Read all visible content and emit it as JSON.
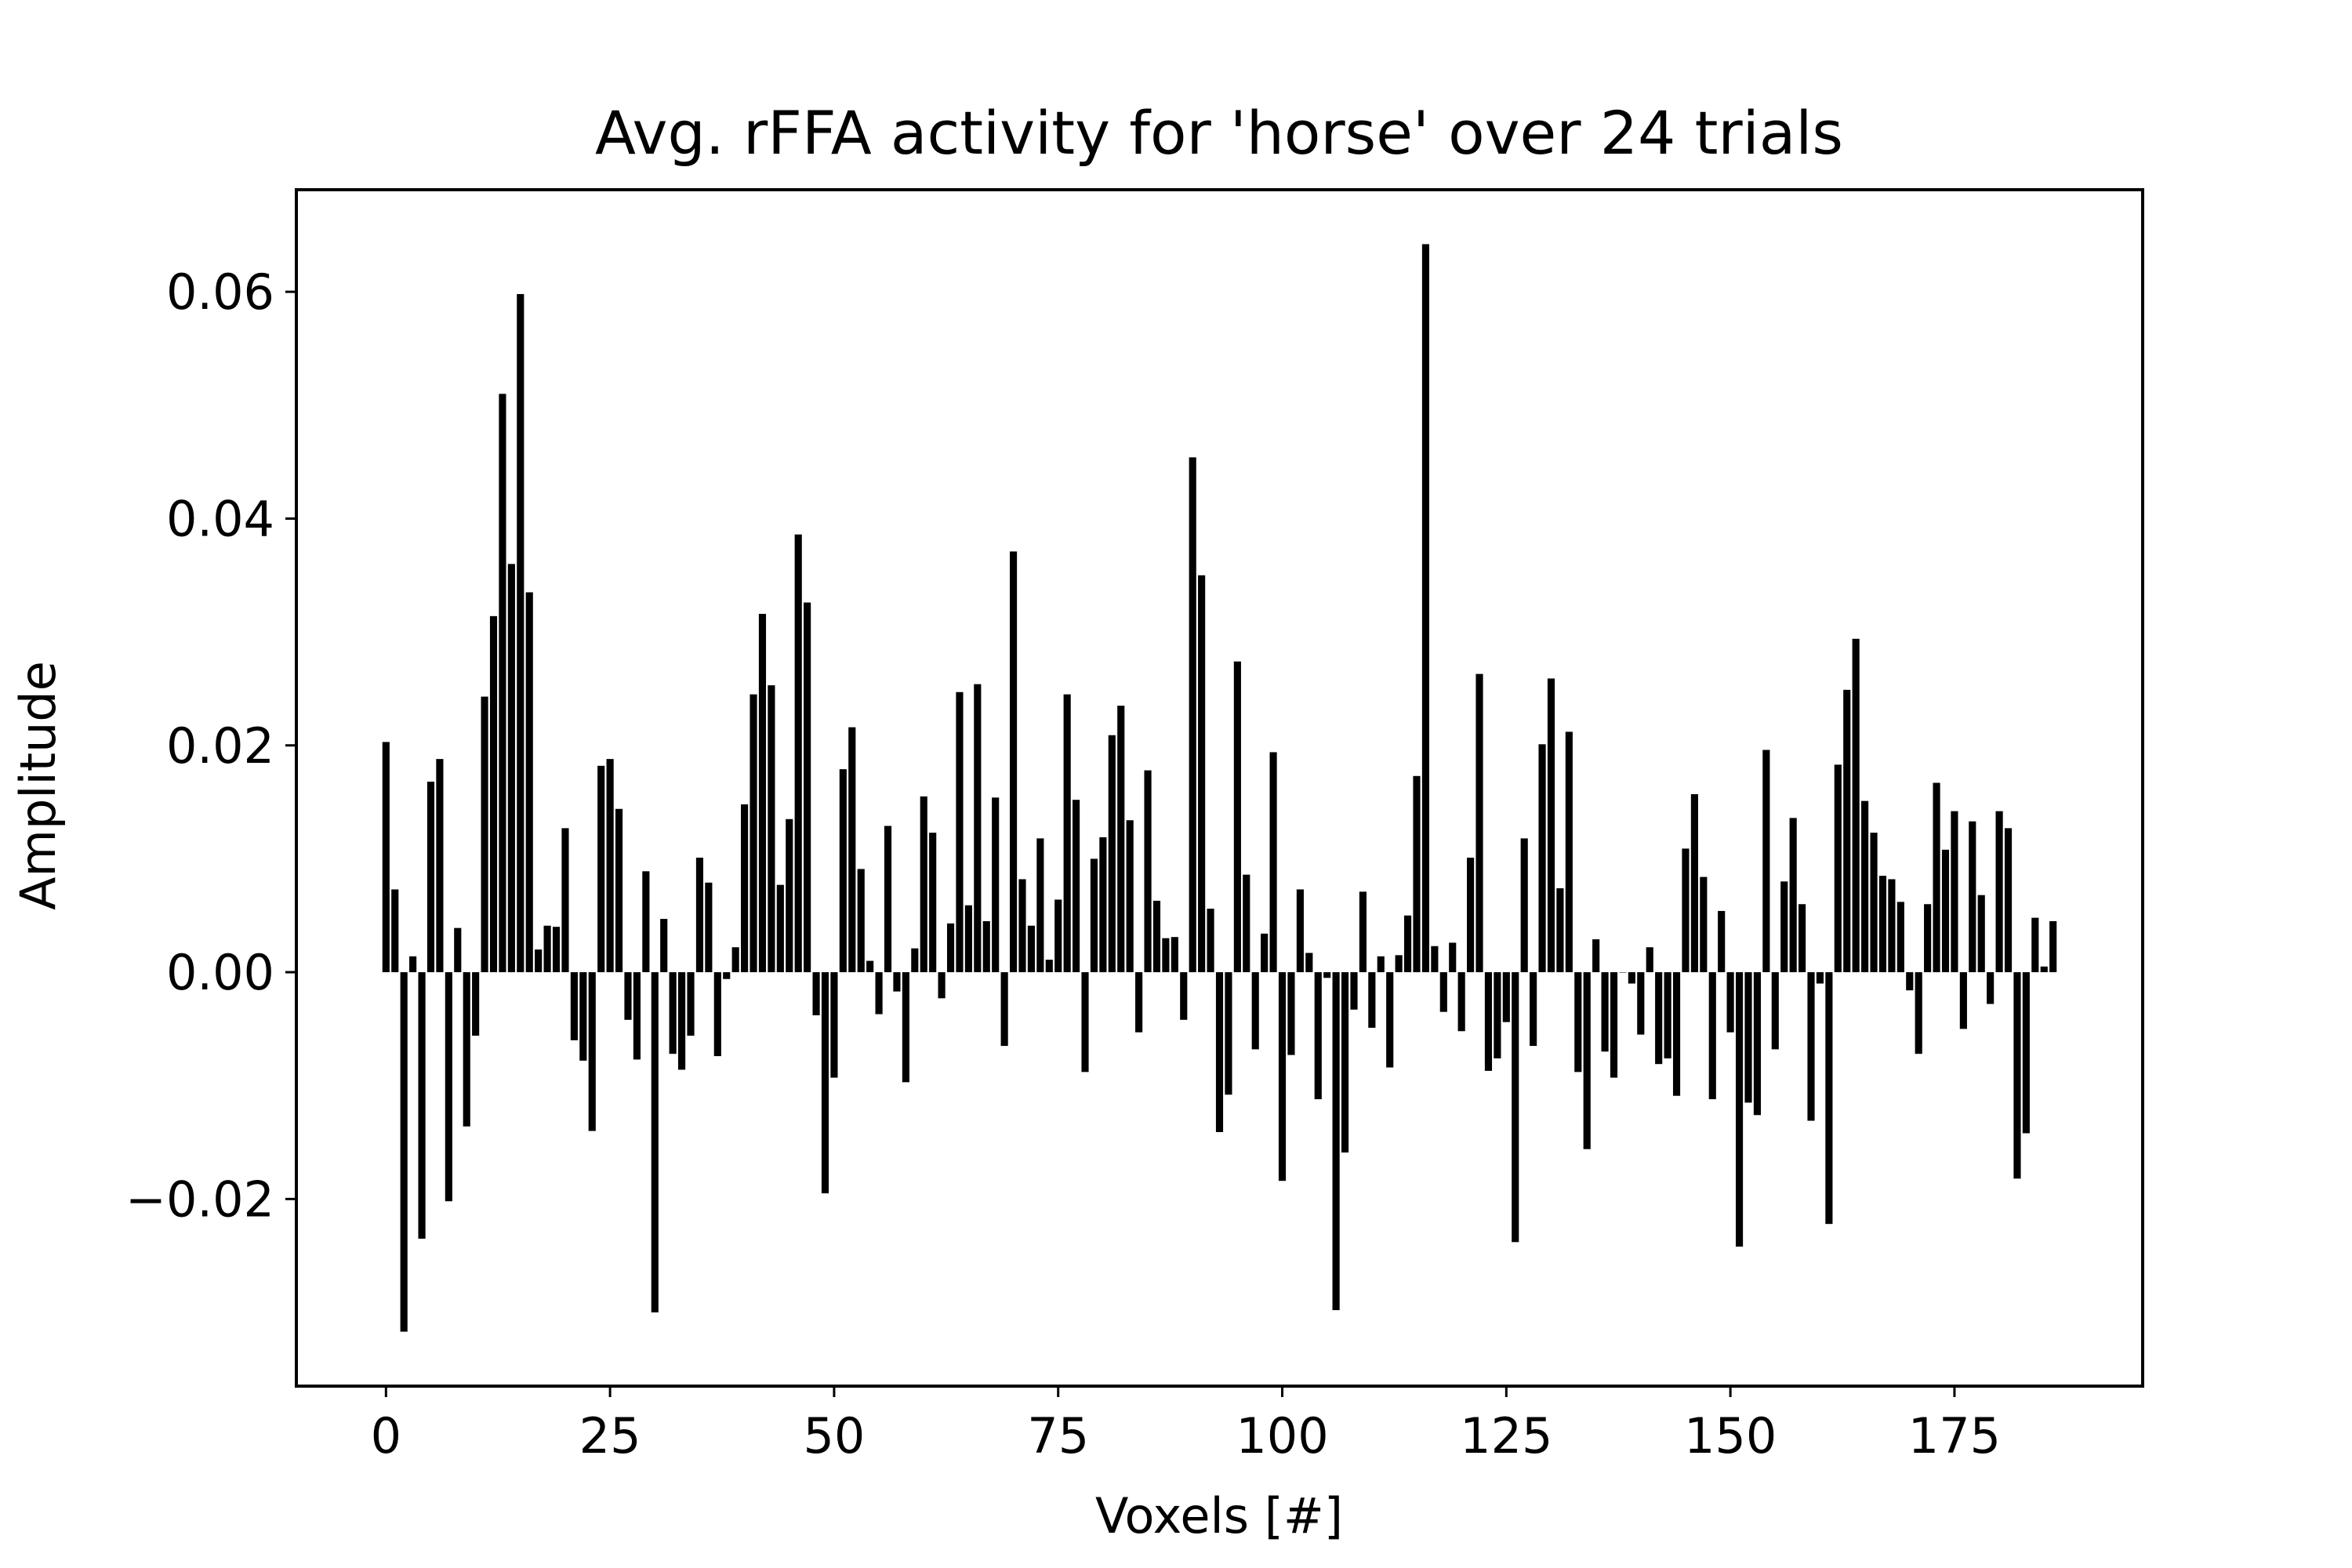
{
  "chart_data": {
    "type": "bar",
    "title": "Avg. rFFA activity for 'horse' over 24 trials",
    "xlabel": "Voxels [#]",
    "ylabel": "Amplitude",
    "xlim": [
      -10,
      196
    ],
    "ylim": [
      -0.0365,
      0.069
    ],
    "xticks": [
      0,
      25,
      50,
      75,
      100,
      125,
      150,
      175
    ],
    "xtick_labels": [
      "0",
      "25",
      "50",
      "75",
      "100",
      "125",
      "150",
      "175"
    ],
    "yticks": [
      -0.02,
      0.0,
      0.02,
      0.04,
      0.06
    ],
    "ytick_labels": [
      "−0.02",
      "0.00",
      "0.02",
      "0.04",
      "0.06"
    ],
    "grid": false,
    "bar_color": "#000000",
    "x": [
      0,
      1,
      2,
      3,
      4,
      5,
      6,
      7,
      8,
      9,
      10,
      11,
      12,
      13,
      14,
      15,
      16,
      17,
      18,
      19,
      20,
      21,
      22,
      23,
      24,
      25,
      26,
      27,
      28,
      29,
      30,
      31,
      32,
      33,
      34,
      35,
      36,
      37,
      38,
      39,
      40,
      41,
      42,
      43,
      44,
      45,
      46,
      47,
      48,
      49,
      50,
      51,
      52,
      53,
      54,
      55,
      56,
      57,
      58,
      59,
      60,
      61,
      62,
      63,
      64,
      65,
      66,
      67,
      68,
      69,
      70,
      71,
      72,
      73,
      74,
      75,
      76,
      77,
      78,
      79,
      80,
      81,
      82,
      83,
      84,
      85,
      86,
      87,
      88,
      89,
      90,
      91,
      92,
      93,
      94,
      95,
      96,
      97,
      98,
      99,
      100,
      101,
      102,
      103,
      104,
      105,
      106,
      107,
      108,
      109,
      110,
      111,
      112,
      113,
      114,
      115,
      116,
      117,
      118,
      119,
      120,
      121,
      122,
      123,
      124,
      125,
      126,
      127,
      128,
      129,
      130,
      131,
      132,
      133,
      134,
      135,
      136,
      137,
      138,
      139,
      140,
      141,
      142,
      143,
      144,
      145,
      146,
      147,
      148,
      149,
      150,
      151,
      152,
      153,
      154,
      155,
      156,
      157,
      158,
      159,
      160,
      161,
      162,
      163,
      164,
      165,
      166,
      167,
      168,
      169,
      170,
      171,
      172,
      173,
      174,
      175,
      176,
      177,
      178,
      179,
      180,
      181,
      182,
      183,
      184,
      185,
      186
    ],
    "values": [
      0.0203,
      0.0073,
      -0.0317,
      0.0014,
      -0.0235,
      0.0168,
      0.0188,
      -0.0202,
      0.0039,
      -0.0136,
      -0.0056,
      0.0243,
      0.0314,
      0.051,
      0.036,
      0.0598,
      0.0335,
      0.002,
      0.0041,
      0.004,
      0.0127,
      -0.006,
      -0.0078,
      -0.014,
      0.0182,
      0.0188,
      0.0144,
      -0.0042,
      -0.0077,
      0.0089,
      -0.03,
      0.0047,
      -0.0072,
      -0.0086,
      -0.0056,
      0.0101,
      0.0079,
      -0.0074,
      -0.0006,
      0.0022,
      0.0148,
      0.0245,
      0.0316,
      0.0253,
      0.0077,
      0.0135,
      0.0386,
      0.0326,
      -0.0038,
      -0.0195,
      -0.0093,
      0.0179,
      0.0216,
      0.0091,
      0.001,
      -0.0037,
      0.0129,
      -0.0017,
      -0.0097,
      0.0021,
      0.0155,
      0.0123,
      -0.0023,
      0.0043,
      0.0247,
      0.0059,
      0.0254,
      0.0045,
      0.0154,
      -0.0065,
      0.0371,
      0.0082,
      0.0041,
      0.0118,
      0.0011,
      0.0064,
      0.0245,
      0.0152,
      -0.0088,
      0.01,
      0.0119,
      0.0209,
      0.0235,
      0.0134,
      -0.0053,
      0.0178,
      0.0063,
      0.003,
      0.0031,
      -0.0042,
      0.0454,
      0.035,
      0.0056,
      -0.0141,
      -0.0108,
      0.0274,
      0.0086,
      -0.0068,
      0.0034,
      0.0194,
      -0.0184,
      -0.0073,
      0.0073,
      0.0017,
      -0.0112,
      -0.0005,
      -0.0298,
      -0.0159,
      -0.0033,
      0.0071,
      -0.0049,
      0.0014,
      -0.0084,
      0.0015,
      0.005,
      0.0173,
      0.0642,
      0.0023,
      -0.0035,
      0.0026,
      -0.0052,
      0.0101,
      0.0263,
      -0.0087,
      -0.0076,
      -0.0044,
      -0.0238,
      0.0118,
      -0.0065,
      0.0201,
      0.0259,
      0.0074,
      0.0212,
      -0.0088,
      -0.0156,
      0.0029,
      -0.007,
      -0.0093,
      0.0,
      -0.001,
      -0.0055,
      0.0022,
      -0.0081,
      -0.0076,
      -0.0109,
      0.0109,
      0.0157,
      0.0084,
      -0.0112,
      0.0054,
      -0.0053,
      -0.0242,
      -0.0115,
      -0.0126,
      0.0196,
      -0.0068,
      0.008,
      0.0136,
      0.006,
      -0.0131,
      -0.001,
      -0.0222,
      0.0183,
      0.0249,
      0.0294,
      0.0151,
      0.0123,
      0.0085,
      0.0082,
      0.0062,
      -0.0016,
      -0.0072,
      0.006,
      0.0167,
      0.0108,
      0.0142,
      -0.005,
      0.0133,
      0.0068,
      -0.0028,
      0.0142,
      0.0127,
      -0.0182,
      -0.0142,
      0.0048,
      0.0005,
      0.0045
    ]
  }
}
